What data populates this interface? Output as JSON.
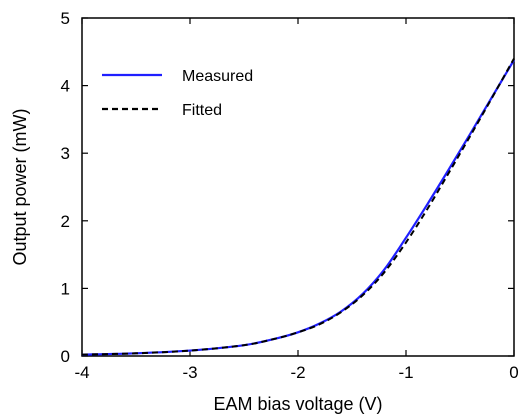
{
  "chart_data": {
    "type": "line",
    "title": "",
    "xlabel": "EAM bias voltage (V)",
    "ylabel": "Output power (mW)",
    "xlim": [
      -4,
      0
    ],
    "ylim": [
      0,
      5
    ],
    "xticks": [
      -4,
      -3,
      -2,
      -1,
      0
    ],
    "yticks": [
      0,
      1,
      2,
      3,
      4,
      5
    ],
    "grid": false,
    "legend_position": "top-left",
    "series": [
      {
        "name": "Measured",
        "color": "#1f1fff",
        "style": "solid",
        "x": [
          -4.0,
          -3.5,
          -3.0,
          -2.5,
          -2.2,
          -2.0,
          -1.8,
          -1.6,
          -1.4,
          -1.2,
          -1.0,
          -0.8,
          -0.6,
          -0.4,
          -0.2,
          0.0
        ],
        "y": [
          0.02,
          0.04,
          0.08,
          0.16,
          0.26,
          0.35,
          0.48,
          0.66,
          0.92,
          1.28,
          1.75,
          2.25,
          2.77,
          3.3,
          3.84,
          4.38
        ]
      },
      {
        "name": "Fitted",
        "color": "#000000",
        "style": "dashed",
        "x": [
          -4.0,
          -3.5,
          -3.0,
          -2.5,
          -2.2,
          -2.0,
          -1.8,
          -1.6,
          -1.4,
          -1.2,
          -1.0,
          -0.8,
          -0.6,
          -0.4,
          -0.2,
          0.0
        ],
        "y": [
          0.02,
          0.04,
          0.08,
          0.16,
          0.26,
          0.35,
          0.47,
          0.65,
          0.9,
          1.24,
          1.68,
          2.18,
          2.72,
          3.27,
          3.83,
          4.4
        ]
      }
    ]
  }
}
